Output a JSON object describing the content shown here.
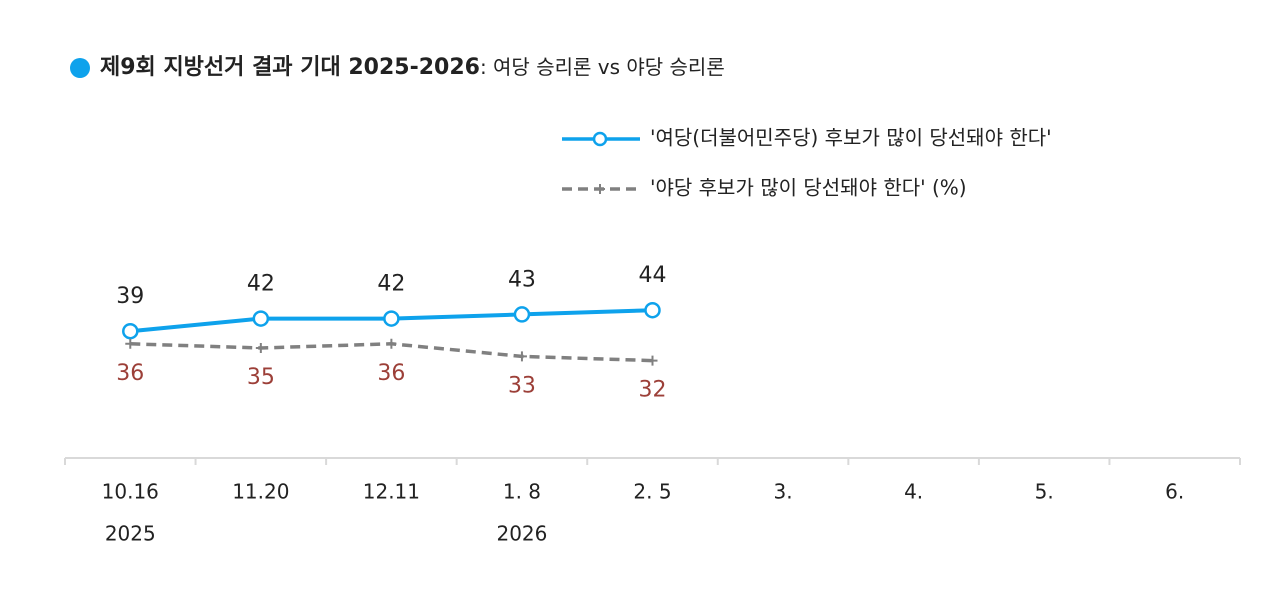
{
  "chart_data": {
    "type": "line",
    "title": "제9회 지방선거 결과 기대 2025-2026",
    "subtitle": ": 여당 승리론 vs 야당 승리론",
    "categories": [
      "10.16",
      "11.20",
      "12.11",
      "1. 8",
      "2. 5",
      "3.",
      "4.",
      "5.",
      "6."
    ],
    "category_years": [
      "2025",
      null,
      null,
      "2026",
      null,
      null,
      null,
      null,
      null
    ],
    "series": [
      {
        "name": "'여당(더불어민주당) 후보가 많이 당선돼야 한다'",
        "color": "#0ea2ec",
        "marker": "circle",
        "dashed": false,
        "label_color": "#222222",
        "label_position": "above",
        "values": [
          39,
          42,
          42,
          43,
          44,
          null,
          null,
          null,
          null
        ]
      },
      {
        "name": "'야당 후보가 많이 당선돼야 한다' (%)",
        "color": "#808080",
        "marker": "plus",
        "dashed": true,
        "label_color": "#9c3f38",
        "label_position": "below",
        "values": [
          36,
          35,
          36,
          33,
          32,
          null,
          null,
          null,
          null
        ]
      }
    ],
    "ylim": [
      10,
      50
    ]
  }
}
